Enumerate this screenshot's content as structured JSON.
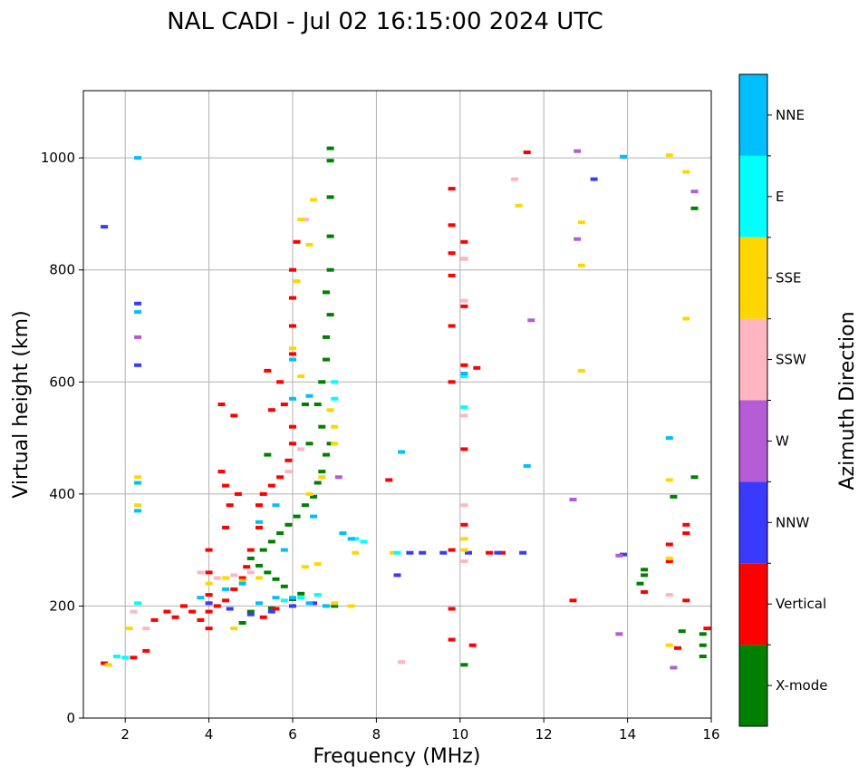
{
  "title": "NAL CADI - Jul 02 16:15:00 2024 UTC",
  "colors": {
    "X-mode": "#008000",
    "Vertical": "#ff0000",
    "NNW": "#3a3aff",
    "W": "#b55bd6",
    "SSW": "#ffb6c1",
    "SSE": "#ffd700",
    "E": "#00ffff",
    "NNE": "#00bfff",
    "grid": "#b0b0b0"
  },
  "chart_data": {
    "type": "scatter",
    "title": "NAL CADI - Jul 02 16:15:00 2024 UTC",
    "xlabel": "Frequency (MHz)",
    "ylabel": "Virtual height (km)",
    "xlim": [
      1,
      16
    ],
    "ylim": [
      0,
      1120
    ],
    "xticks": [
      2,
      4,
      6,
      8,
      10,
      12,
      14,
      16
    ],
    "yticks": [
      0,
      200,
      400,
      600,
      800,
      1000
    ],
    "grid": true,
    "colorbar": {
      "label": "Azimuth Direction",
      "categories": [
        "X-mode",
        "Vertical",
        "NNW",
        "W",
        "SSW",
        "SSE",
        "E",
        "NNE"
      ]
    },
    "series": [
      {
        "name": "X-mode",
        "points": [
          [
            6.0,
            212
          ],
          [
            6.2,
            222
          ],
          [
            5.8,
            235
          ],
          [
            5.6,
            248
          ],
          [
            5.4,
            260
          ],
          [
            5.2,
            272
          ],
          [
            5.0,
            285
          ],
          [
            5.3,
            300
          ],
          [
            5.5,
            315
          ],
          [
            5.7,
            330
          ],
          [
            5.9,
            345
          ],
          [
            6.1,
            360
          ],
          [
            6.3,
            380
          ],
          [
            6.5,
            395
          ],
          [
            6.6,
            420
          ],
          [
            6.7,
            440
          ],
          [
            6.8,
            470
          ],
          [
            6.9,
            490
          ],
          [
            6.7,
            520
          ],
          [
            6.6,
            560
          ],
          [
            6.7,
            600
          ],
          [
            6.8,
            640
          ],
          [
            6.8,
            680
          ],
          [
            6.9,
            720
          ],
          [
            6.8,
            760
          ],
          [
            6.9,
            800
          ],
          [
            6.9,
            860
          ],
          [
            6.9,
            930
          ],
          [
            6.9,
            995
          ],
          [
            6.9,
            1017
          ],
          [
            4.8,
            170
          ],
          [
            5.0,
            190
          ],
          [
            5.5,
            196
          ],
          [
            7.0,
            200
          ],
          [
            10.1,
            95
          ],
          [
            14.4,
            265
          ],
          [
            14.4,
            255
          ],
          [
            14.3,
            240
          ],
          [
            15.1,
            395
          ],
          [
            15.6,
            430
          ],
          [
            15.6,
            910
          ],
          [
            15.3,
            155
          ],
          [
            15.8,
            150
          ],
          [
            15.8,
            130
          ],
          [
            15.8,
            110
          ],
          [
            6.4,
            490
          ],
          [
            6.3,
            560
          ],
          [
            5.4,
            470
          ]
        ]
      },
      {
        "name": "Vertical",
        "points": [
          [
            1.5,
            98
          ],
          [
            2.2,
            108
          ],
          [
            2.5,
            120
          ],
          [
            2.7,
            175
          ],
          [
            3.0,
            190
          ],
          [
            3.2,
            180
          ],
          [
            3.4,
            200
          ],
          [
            3.6,
            190
          ],
          [
            3.8,
            175
          ],
          [
            4.0,
            160
          ],
          [
            4.0,
            190
          ],
          [
            4.0,
            220
          ],
          [
            4.0,
            260
          ],
          [
            4.0,
            300
          ],
          [
            4.2,
            200
          ],
          [
            4.4,
            210
          ],
          [
            4.6,
            230
          ],
          [
            4.8,
            250
          ],
          [
            4.9,
            270
          ],
          [
            5.0,
            300
          ],
          [
            5.2,
            340
          ],
          [
            5.2,
            380
          ],
          [
            5.3,
            400
          ],
          [
            5.5,
            415
          ],
          [
            5.7,
            430
          ],
          [
            5.9,
            460
          ],
          [
            6.0,
            490
          ],
          [
            6.0,
            520
          ],
          [
            5.8,
            560
          ],
          [
            5.7,
            600
          ],
          [
            6.0,
            650
          ],
          [
            6.0,
            700
          ],
          [
            6.0,
            750
          ],
          [
            6.0,
            800
          ],
          [
            6.1,
            850
          ],
          [
            4.3,
            440
          ],
          [
            4.7,
            400
          ],
          [
            4.5,
            380
          ],
          [
            4.4,
            340
          ],
          [
            4.3,
            560
          ],
          [
            4.6,
            540
          ],
          [
            5.4,
            620
          ],
          [
            5.5,
            550
          ],
          [
            4.4,
            415
          ],
          [
            5.3,
            180
          ],
          [
            5.6,
            195
          ],
          [
            9.8,
            195
          ],
          [
            9.8,
            140
          ],
          [
            9.8,
            600
          ],
          [
            9.8,
            700
          ],
          [
            9.8,
            790
          ],
          [
            9.8,
            830
          ],
          [
            9.8,
            880
          ],
          [
            9.8,
            945
          ],
          [
            10.1,
            850
          ],
          [
            10.1,
            820
          ],
          [
            10.1,
            735
          ],
          [
            10.1,
            630
          ],
          [
            10.1,
            480
          ],
          [
            10.1,
            345
          ],
          [
            10.4,
            625
          ],
          [
            10.3,
            130
          ],
          [
            10.7,
            295
          ],
          [
            11.0,
            295
          ],
          [
            11.6,
            1010
          ],
          [
            8.3,
            425
          ],
          [
            9.8,
            300
          ],
          [
            12.7,
            210
          ],
          [
            15.0,
            280
          ],
          [
            15.0,
            310
          ],
          [
            15.4,
            345
          ],
          [
            15.4,
            330
          ],
          [
            15.4,
            210
          ],
          [
            15.2,
            125
          ],
          [
            15.9,
            160
          ],
          [
            14.4,
            225
          ]
        ]
      },
      {
        "name": "NNW",
        "points": [
          [
            1.5,
            877
          ],
          [
            2.3,
            630
          ],
          [
            2.3,
            740
          ],
          [
            4.0,
            205
          ],
          [
            4.5,
            195
          ],
          [
            5.0,
            185
          ],
          [
            5.5,
            190
          ],
          [
            6.0,
            200
          ],
          [
            6.5,
            205
          ],
          [
            8.5,
            255
          ],
          [
            8.8,
            295
          ],
          [
            9.1,
            295
          ],
          [
            9.6,
            295
          ],
          [
            10.2,
            295
          ],
          [
            10.9,
            295
          ],
          [
            11.5,
            295
          ],
          [
            13.2,
            962
          ],
          [
            13.9,
            1002
          ],
          [
            13.9,
            292
          ]
        ]
      },
      {
        "name": "W",
        "points": [
          [
            2.3,
            680
          ],
          [
            12.8,
            1012
          ],
          [
            12.8,
            855
          ],
          [
            11.7,
            710
          ],
          [
            12.7,
            390
          ],
          [
            13.8,
            290
          ],
          [
            13.8,
            150
          ],
          [
            15.1,
            90
          ],
          [
            15.6,
            940
          ],
          [
            7.1,
            430
          ]
        ]
      },
      {
        "name": "SSW",
        "points": [
          [
            2.2,
            190
          ],
          [
            2.5,
            160
          ],
          [
            3.8,
            260
          ],
          [
            4.2,
            250
          ],
          [
            4.6,
            255
          ],
          [
            5.0,
            260
          ],
          [
            6.3,
            890
          ],
          [
            8.6,
            100
          ],
          [
            10.1,
            820
          ],
          [
            10.1,
            745
          ],
          [
            10.1,
            540
          ],
          [
            10.1,
            380
          ],
          [
            10.1,
            280
          ],
          [
            11.3,
            962
          ],
          [
            15.0,
            220
          ],
          [
            5.9,
            440
          ],
          [
            6.2,
            480
          ]
        ]
      },
      {
        "name": "SSE",
        "points": [
          [
            1.6,
            95
          ],
          [
            2.1,
            160
          ],
          [
            2.3,
            380
          ],
          [
            2.3,
            430
          ],
          [
            4.0,
            240
          ],
          [
            4.4,
            250
          ],
          [
            4.8,
            245
          ],
          [
            5.2,
            250
          ],
          [
            6.5,
            925
          ],
          [
            6.4,
            845
          ],
          [
            6.2,
            890
          ],
          [
            6.1,
            780
          ],
          [
            6.0,
            660
          ],
          [
            6.2,
            610
          ],
          [
            6.9,
            550
          ],
          [
            7.0,
            520
          ],
          [
            7.0,
            490
          ],
          [
            6.7,
            430
          ],
          [
            6.4,
            400
          ],
          [
            6.6,
            275
          ],
          [
            6.3,
            270
          ],
          [
            7.0,
            205
          ],
          [
            7.4,
            200
          ],
          [
            7.5,
            295
          ],
          [
            8.4,
            295
          ],
          [
            10.1,
            320
          ],
          [
            10.1,
            300
          ],
          [
            11.4,
            915
          ],
          [
            12.9,
            885
          ],
          [
            12.9,
            808
          ],
          [
            12.9,
            620
          ],
          [
            15.0,
            1005
          ],
          [
            15.4,
            975
          ],
          [
            15.4,
            713
          ],
          [
            15.0,
            425
          ],
          [
            15.0,
            285
          ],
          [
            15.0,
            130
          ],
          [
            4.6,
            160
          ]
        ]
      },
      {
        "name": "E",
        "points": [
          [
            1.8,
            110
          ],
          [
            2.0,
            108
          ],
          [
            2.3,
            205
          ],
          [
            5.8,
            210
          ],
          [
            6.2,
            215
          ],
          [
            6.6,
            220
          ],
          [
            7.0,
            570
          ],
          [
            7.0,
            600
          ],
          [
            7.5,
            320
          ],
          [
            7.7,
            315
          ],
          [
            10.1,
            610
          ],
          [
            10.1,
            555
          ],
          [
            8.5,
            295
          ]
        ]
      },
      {
        "name": "NNE",
        "points": [
          [
            2.3,
            1000
          ],
          [
            2.3,
            725
          ],
          [
            2.3,
            420
          ],
          [
            2.3,
            370
          ],
          [
            3.8,
            215
          ],
          [
            4.4,
            230
          ],
          [
            4.8,
            240
          ],
          [
            5.2,
            205
          ],
          [
            5.6,
            215
          ],
          [
            6.0,
            215
          ],
          [
            6.4,
            205
          ],
          [
            6.8,
            200
          ],
          [
            5.2,
            350
          ],
          [
            5.6,
            380
          ],
          [
            5.8,
            300
          ],
          [
            6.0,
            570
          ],
          [
            6.0,
            640
          ],
          [
            6.4,
            575
          ],
          [
            6.5,
            360
          ],
          [
            7.2,
            330
          ],
          [
            7.4,
            320
          ],
          [
            8.6,
            475
          ],
          [
            10.1,
            615
          ],
          [
            11.6,
            450
          ],
          [
            13.9,
            1002
          ],
          [
            15.0,
            500
          ]
        ]
      }
    ]
  }
}
